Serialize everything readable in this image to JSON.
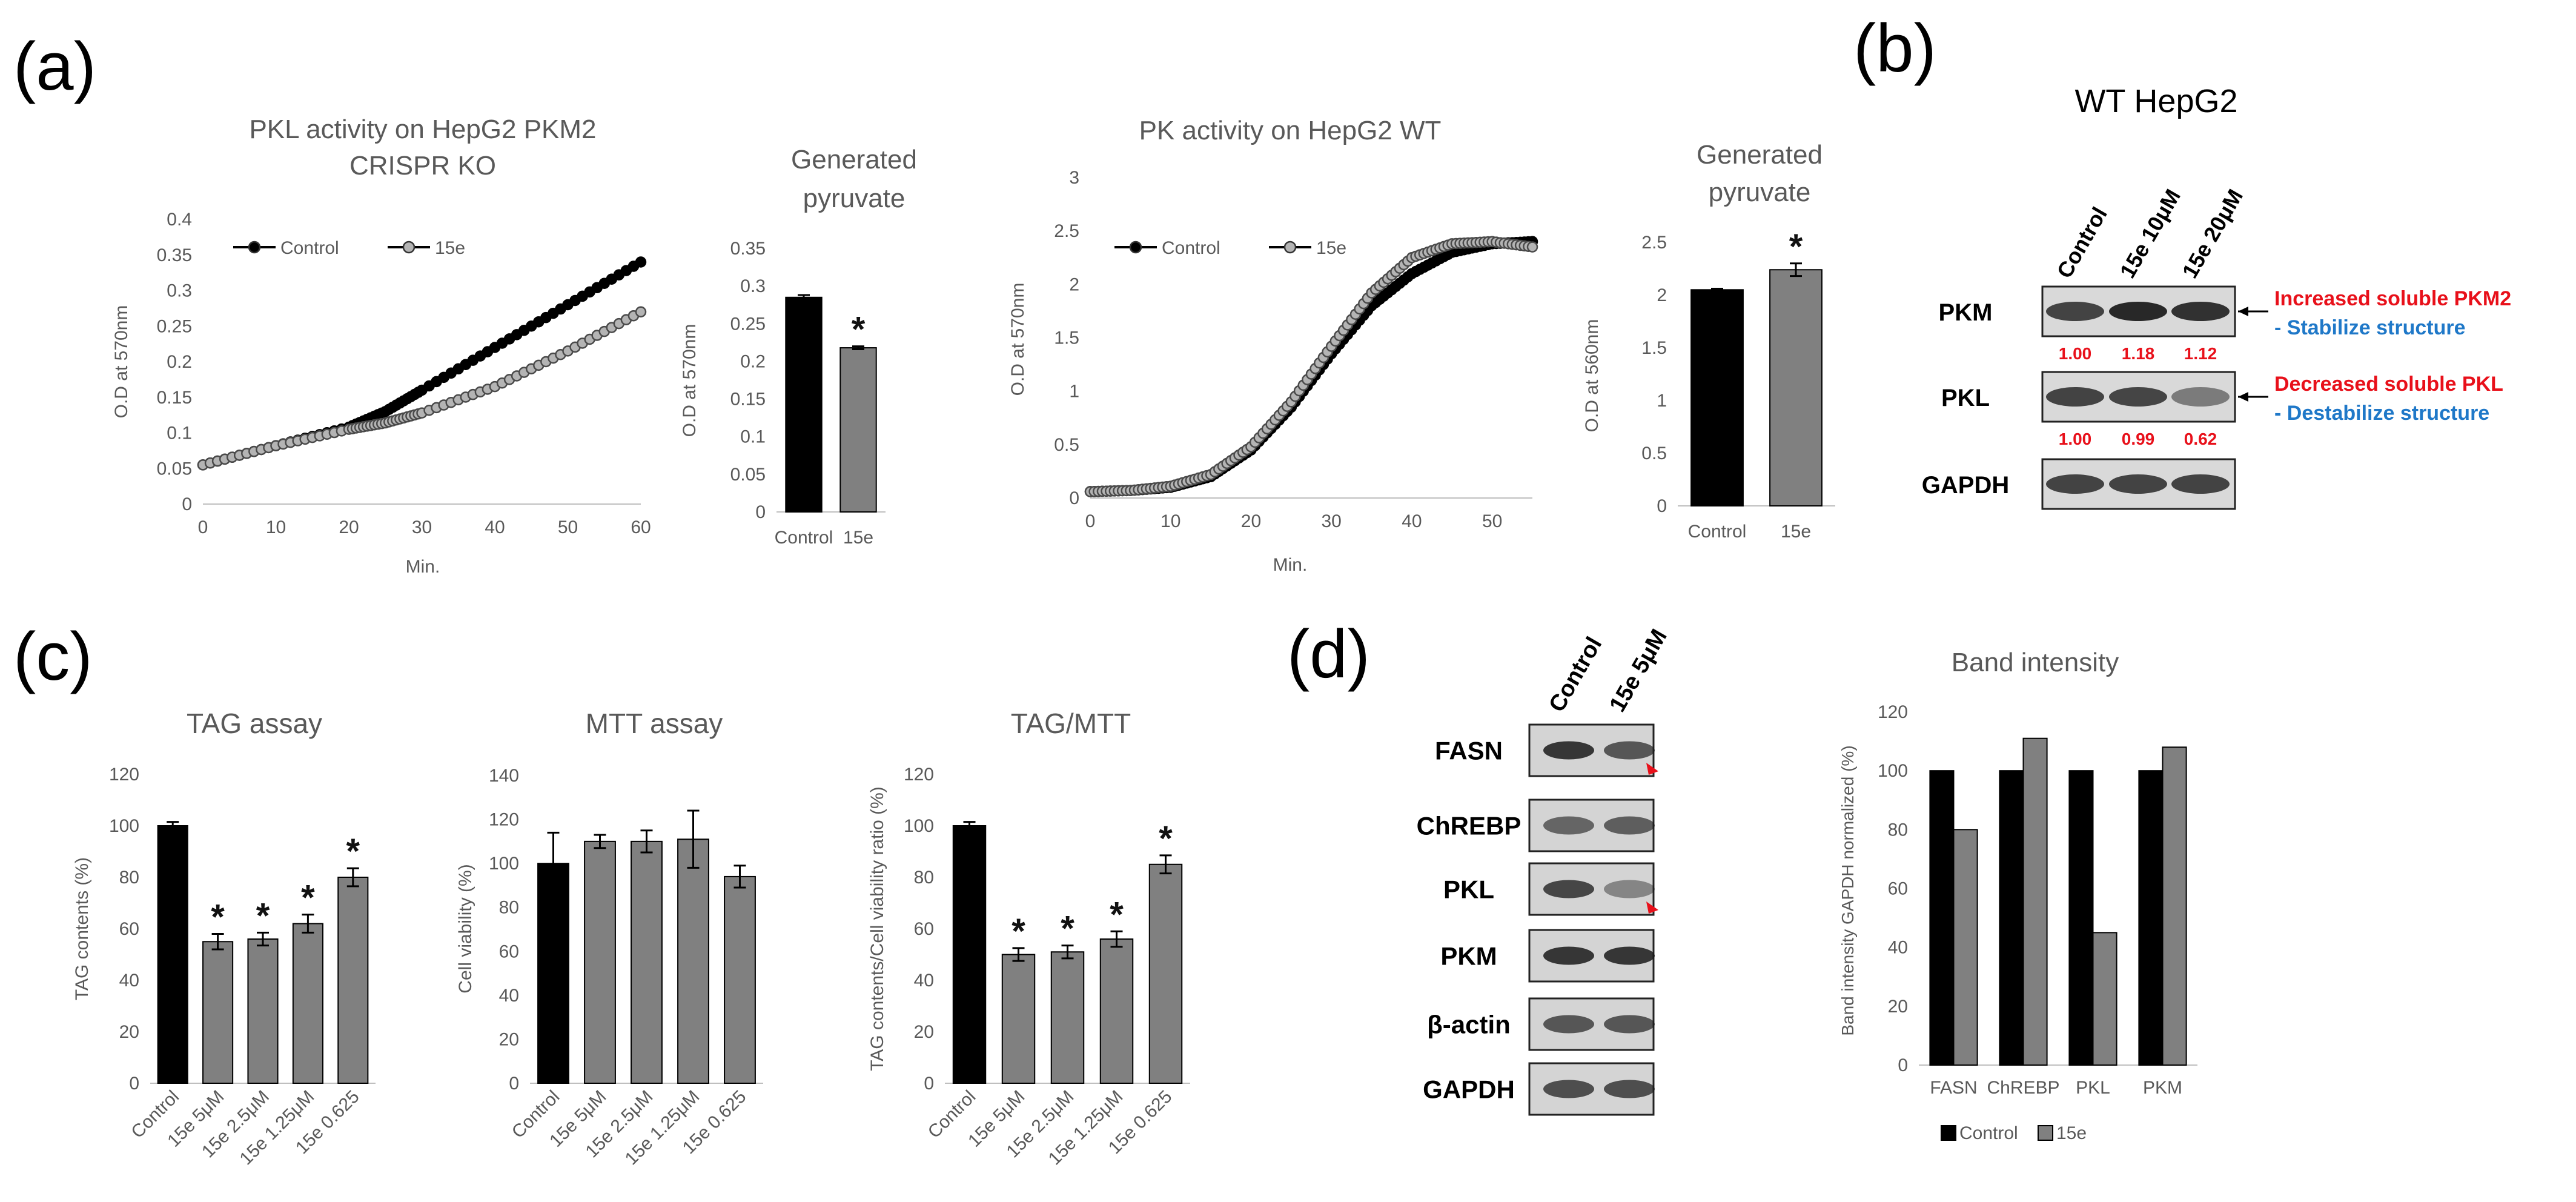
{
  "panel_labels": {
    "a": "(a)",
    "b": "(b)",
    "c": "(c)",
    "d": "(d)"
  },
  "chart_data": [
    {
      "id": "pkl_ko",
      "type": "line",
      "title": [
        "PKL activity on HepG2 PKM2",
        "CRISPR KO"
      ],
      "xlabel": "Min.",
      "ylabel": "O.D at 570nm",
      "xlim": [
        0,
        60
      ],
      "ylim": [
        0,
        0.4
      ],
      "xticks": [
        0,
        10,
        20,
        30,
        40,
        50,
        60
      ],
      "yticks": [
        0,
        0.05,
        0.1,
        0.15,
        0.2,
        0.25,
        0.3,
        0.35,
        0.4
      ],
      "ytick_labels": [
        "0",
        "0.05",
        "0.1",
        "0.15",
        "0.2",
        "0.25",
        "0.3",
        "0.35",
        "0.4"
      ],
      "legend": [
        "Control",
        "15e"
      ],
      "series": [
        {
          "name": "Control",
          "style": "filled",
          "x": [
            0,
            10,
            20,
            25,
            30,
            40,
            50,
            60
          ],
          "y": [
            0.055,
            0.082,
            0.108,
            0.13,
            0.16,
            0.22,
            0.28,
            0.34
          ]
        },
        {
          "name": "15e",
          "style": "open",
          "x": [
            0,
            10,
            20,
            25,
            30,
            40,
            50,
            60
          ],
          "y": [
            0.055,
            0.082,
            0.105,
            0.114,
            0.128,
            0.165,
            0.215,
            0.27
          ]
        }
      ]
    },
    {
      "id": "pyr_ko",
      "type": "bar",
      "title": [
        "Generated",
        "pyruvate"
      ],
      "ylabel": "O.D at 570nm",
      "ylim": [
        0,
        0.35
      ],
      "yticks": [
        0,
        0.05,
        0.1,
        0.15,
        0.2,
        0.25,
        0.3,
        0.35
      ],
      "ytick_labels": [
        "0",
        "0.05",
        "0.1",
        "0.15",
        "0.2",
        "0.25",
        "0.3",
        "0.35"
      ],
      "categories": [
        "Control",
        "15e"
      ],
      "values": [
        0.285,
        0.218
      ],
      "errors": [
        0.003,
        0.002
      ],
      "colors": [
        "#000000",
        "#808080"
      ],
      "stars": [
        "",
        "*"
      ]
    },
    {
      "id": "pk_wt",
      "type": "line",
      "title": [
        "PK activity on HepG2 WT"
      ],
      "xlabel": "Min.",
      "ylabel": "O.D at 570nm",
      "xlim": [
        0,
        55
      ],
      "ylim": [
        0,
        3
      ],
      "xticks": [
        0,
        10,
        20,
        30,
        40,
        50
      ],
      "yticks": [
        0,
        0.5,
        1,
        1.5,
        2,
        2.5,
        3
      ],
      "ytick_labels": [
        "0",
        "0.5",
        "1",
        "1.5",
        "2",
        "2.5",
        "3"
      ],
      "legend": [
        "Control",
        "15e"
      ],
      "series": [
        {
          "name": "Control",
          "style": "filled",
          "x": [
            0,
            5,
            10,
            15,
            20,
            25,
            30,
            35,
            40,
            45,
            50,
            55
          ],
          "y": [
            0.06,
            0.07,
            0.1,
            0.2,
            0.45,
            0.85,
            1.35,
            1.8,
            2.1,
            2.3,
            2.38,
            2.4
          ]
        },
        {
          "name": "15e",
          "style": "open",
          "x": [
            0,
            5,
            10,
            15,
            20,
            25,
            30,
            35,
            40,
            45,
            50,
            55
          ],
          "y": [
            0.06,
            0.07,
            0.11,
            0.22,
            0.48,
            0.9,
            1.42,
            1.92,
            2.25,
            2.38,
            2.4,
            2.35
          ]
        }
      ]
    },
    {
      "id": "pyr_wt",
      "type": "bar",
      "title": [
        "Generated",
        "pyruvate"
      ],
      "ylabel": "O.D at 560nm",
      "ylim": [
        0,
        2.5
      ],
      "yticks": [
        0,
        0.5,
        1,
        1.5,
        2,
        2.5
      ],
      "ytick_labels": [
        "0",
        "0.5",
        "1",
        "1.5",
        "2",
        "2.5"
      ],
      "categories": [
        "Control",
        "15e"
      ],
      "values": [
        2.05,
        2.24
      ],
      "errors": [
        0.01,
        0.06
      ],
      "colors": [
        "#000000",
        "#808080"
      ],
      "stars": [
        "",
        "*"
      ]
    },
    {
      "id": "tag",
      "type": "bar",
      "title": [
        "TAG assay"
      ],
      "ylabel": "TAG contents (%)",
      "ylim": [
        0,
        120
      ],
      "yticks": [
        0,
        20,
        40,
        60,
        80,
        100,
        120
      ],
      "ytick_labels": [
        "0",
        "20",
        "40",
        "60",
        "80",
        "100",
        "120"
      ],
      "categories": [
        "Control",
        "15e 5μM",
        "15e 2.5μM",
        "15e 1.25μM",
        "15e 0.625"
      ],
      "values": [
        100,
        55,
        56,
        62,
        80
      ],
      "errors": [
        1.5,
        3,
        2.5,
        3.5,
        3.5
      ],
      "colors": [
        "#000000",
        "#808080",
        "#808080",
        "#808080",
        "#808080"
      ],
      "stars": [
        "",
        "*",
        "*",
        "*",
        "*"
      ]
    },
    {
      "id": "mtt",
      "type": "bar",
      "title": [
        "MTT assay"
      ],
      "ylabel": "Cell viability (%)",
      "ylim": [
        0,
        140
      ],
      "yticks": [
        0,
        20,
        40,
        60,
        80,
        100,
        120,
        140
      ],
      "ytick_labels": [
        "0",
        "20",
        "40",
        "60",
        "80",
        "100",
        "120",
        "140"
      ],
      "categories": [
        "Control",
        "15e 5μM",
        "15e 2.5μM",
        "15e 1.25μM",
        "15e 0.625"
      ],
      "values": [
        100,
        110,
        110,
        111,
        94
      ],
      "errors": [
        14,
        3,
        5,
        13,
        5
      ],
      "colors": [
        "#000000",
        "#808080",
        "#808080",
        "#808080",
        "#808080"
      ],
      "stars": [
        "",
        "",
        "",
        "",
        ""
      ]
    },
    {
      "id": "tagmtt",
      "type": "bar",
      "title": [
        "TAG/MTT"
      ],
      "ylabel": "TAG contents/Cell viability ratio (%)",
      "ylim": [
        0,
        120
      ],
      "yticks": [
        0,
        20,
        40,
        60,
        80,
        100,
        120
      ],
      "ytick_labels": [
        "0",
        "20",
        "40",
        "60",
        "80",
        "100",
        "120"
      ],
      "categories": [
        "Control",
        "15e 5μM",
        "15e 2.5μM",
        "15e 1.25μM",
        "15e 0.625"
      ],
      "values": [
        100,
        50,
        51,
        56,
        85
      ],
      "errors": [
        1.5,
        2.5,
        2.5,
        3,
        3.5
      ],
      "colors": [
        "#000000",
        "#808080",
        "#808080",
        "#808080",
        "#808080"
      ],
      "stars": [
        "",
        "*",
        "*",
        "*",
        "*"
      ]
    },
    {
      "id": "band",
      "type": "bar",
      "title": [
        "Band intensity"
      ],
      "ylabel": "Band intensity GAPDH normalized (%)",
      "ylim": [
        0,
        120
      ],
      "yticks": [
        0,
        20,
        40,
        60,
        80,
        100,
        120
      ],
      "ytick_labels": [
        "0",
        "20",
        "40",
        "60",
        "80",
        "100",
        "120"
      ],
      "categories": [
        "FASN",
        "ChREBP",
        "PKL",
        "PKM"
      ],
      "series": [
        {
          "name": "Control",
          "color": "#000000",
          "values": [
            100,
            100,
            100,
            100
          ]
        },
        {
          "name": "15e",
          "color": "#808080",
          "values": [
            80,
            111,
            45,
            108
          ]
        }
      ],
      "legend": [
        "Control",
        "15e"
      ]
    }
  ],
  "blot_b": {
    "title": "WT HepG2",
    "lanes": [
      "Control",
      "15e 10μM",
      "15e 20μM"
    ],
    "rows": [
      {
        "label": "PKM",
        "intensity": [
          1.0,
          1.18,
          1.12
        ],
        "quant": [
          "1.00",
          "1.18",
          "1.12"
        ]
      },
      {
        "label": "PKL",
        "intensity": [
          1.0,
          0.99,
          0.62
        ],
        "quant": [
          "1.00",
          "0.99",
          "0.62"
        ]
      },
      {
        "label": "GAPDH",
        "intensity": [
          1.0,
          1.0,
          1.0
        ]
      }
    ],
    "annotations": [
      {
        "main": "Increased soluble PKM2",
        "sub": "- Stabilize structure"
      },
      {
        "main": "Decreased soluble PKL",
        "sub": "- Destabilize structure"
      }
    ],
    "colors": {
      "main": "#e8101a",
      "sub": "#1f78c8",
      "quant": "#e8101a"
    }
  },
  "blot_d": {
    "lanes": [
      "Control",
      "15e 5μM"
    ],
    "rows": [
      {
        "label": "FASN",
        "intensity": [
          1.0,
          0.8
        ],
        "marker": true
      },
      {
        "label": "ChREBP",
        "intensity": [
          0.7,
          0.75
        ],
        "marker": false
      },
      {
        "label": "PKL",
        "intensity": [
          0.9,
          0.5
        ],
        "marker": true
      },
      {
        "label": "PKM",
        "intensity": [
          1.0,
          1.0
        ],
        "marker": false
      },
      {
        "label": "β-actin",
        "intensity": [
          0.8,
          0.8
        ],
        "marker": false
      },
      {
        "label": "GAPDH",
        "intensity": [
          0.85,
          0.85
        ],
        "marker": false
      }
    ]
  }
}
